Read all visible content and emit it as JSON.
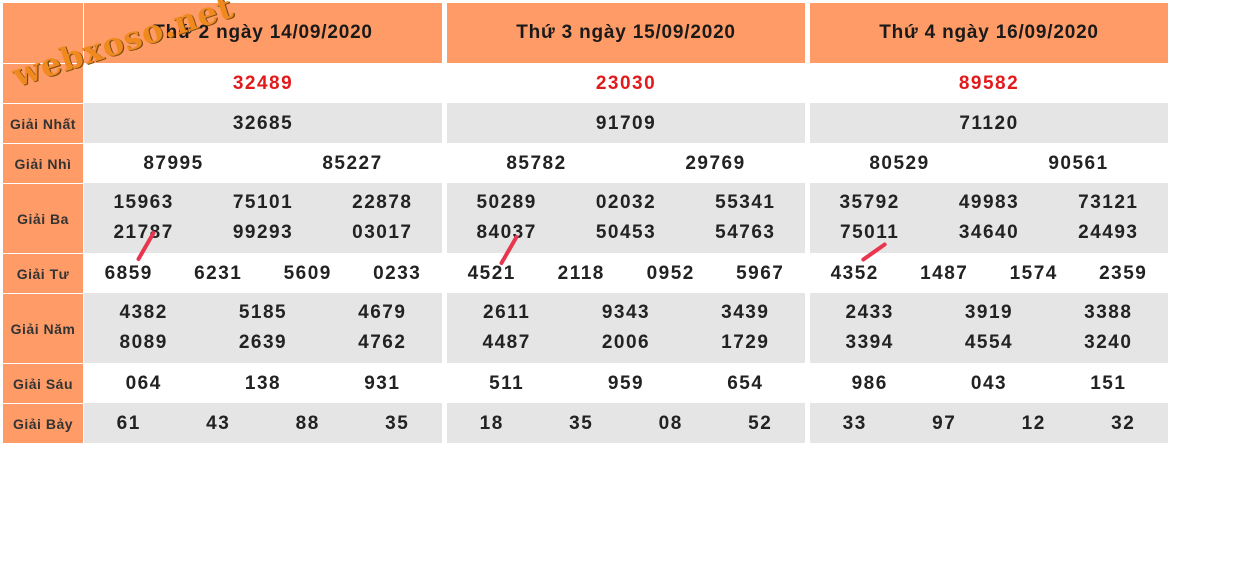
{
  "site_watermark": "webxoso.net",
  "labels": [
    "Giải Nhất",
    "Giải Nhì",
    "Giải Ba",
    "Giải Tư",
    "Giải Năm",
    "Giải Sáu",
    "Giải Bảy"
  ],
  "columns": [
    {
      "title": "Thứ 2 ngày 14/09/2020",
      "special": "32489",
      "nhat": [
        "32685"
      ],
      "nhi": [
        "87995",
        "85227"
      ],
      "ba": [
        [
          "15963",
          "75101",
          "22878"
        ],
        [
          "21787",
          "99293",
          "03017"
        ]
      ],
      "tu": [
        "6859",
        "6231",
        "5609",
        "0233"
      ],
      "nam": [
        [
          "4382",
          "5185",
          "4679"
        ],
        [
          "8089",
          "2639",
          "4762"
        ]
      ],
      "sau": [
        "064",
        "138",
        "931"
      ],
      "bay": [
        "61",
        "43",
        "88",
        "35"
      ]
    },
    {
      "title": "Thứ 3 ngày 15/09/2020",
      "special": "23030",
      "nhat": [
        "91709"
      ],
      "nhi": [
        "85782",
        "29769"
      ],
      "ba": [
        [
          "50289",
          "02032",
          "55341"
        ],
        [
          "84037",
          "50453",
          "54763"
        ]
      ],
      "tu": [
        "4521",
        "2118",
        "0952",
        "5967"
      ],
      "nam": [
        [
          "2611",
          "9343",
          "3439"
        ],
        [
          "4487",
          "2006",
          "1729"
        ]
      ],
      "sau": [
        "511",
        "959",
        "654"
      ],
      "bay": [
        "18",
        "35",
        "08",
        "52"
      ]
    },
    {
      "title": "Thứ 4 ngày 16/09/2020",
      "special": "89582",
      "nhat": [
        "71120"
      ],
      "nhi": [
        "80529",
        "90561"
      ],
      "ba": [
        [
          "35792",
          "49983",
          "73121"
        ],
        [
          "75011",
          "34640",
          "24493"
        ]
      ],
      "tu": [
        "4352",
        "1487",
        "1574",
        "2359"
      ],
      "nam": [
        [
          "2433",
          "3919",
          "3388"
        ],
        [
          "3394",
          "4554",
          "3240"
        ]
      ],
      "sau": [
        "986",
        "043",
        "151"
      ],
      "bay": [
        "33",
        "97",
        "12",
        "32"
      ]
    }
  ],
  "colors": {
    "header": "#fe9b66",
    "special_text": "#e11b1b",
    "row_gray": "#e5e5e5",
    "mark": "#e8364f",
    "watermark": "#f08a1f"
  }
}
